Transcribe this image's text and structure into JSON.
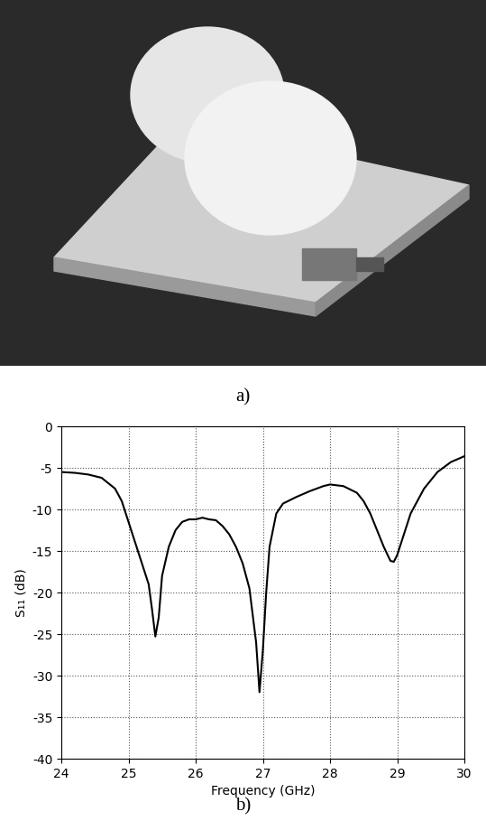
{
  "photo": {
    "caption": "a)"
  },
  "chart_data": {
    "type": "line",
    "caption": "b)",
    "x_label": "Frequency (GHz)",
    "y_label": "S₁₁ (dB)",
    "x": [
      24.0,
      24.2,
      24.4,
      24.6,
      24.8,
      24.9,
      25.0,
      25.1,
      25.2,
      25.3,
      25.35,
      25.4,
      25.45,
      25.5,
      25.6,
      25.7,
      25.8,
      25.9,
      26.0,
      26.1,
      26.2,
      26.3,
      26.4,
      26.5,
      26.6,
      26.7,
      26.8,
      26.9,
      26.95,
      27.0,
      27.05,
      27.1,
      27.2,
      27.3,
      27.5,
      27.7,
      27.9,
      28.0,
      28.2,
      28.4,
      28.5,
      28.6,
      28.7,
      28.8,
      28.9,
      28.95,
      29.0,
      29.1,
      29.2,
      29.4,
      29.6,
      29.8,
      30.0
    ],
    "values": [
      -5.5,
      -5.6,
      -5.8,
      -6.2,
      -7.5,
      -9,
      -11.5,
      -14,
      -16.5,
      -19,
      -22,
      -25.3,
      -23,
      -18,
      -14.5,
      -12.5,
      -11.5,
      -11.2,
      -11.2,
      -11,
      -11.2,
      -11.3,
      -12,
      -13,
      -14.5,
      -16.5,
      -19.5,
      -26,
      -32,
      -27,
      -20,
      -14.5,
      -10.5,
      -9.3,
      -8.5,
      -7.8,
      -7.2,
      -7,
      -7.2,
      -8,
      -9,
      -10.5,
      -12.5,
      -14.5,
      -16.2,
      -16.3,
      -15.5,
      -13,
      -10.5,
      -7.5,
      -5.5,
      -4.3,
      -3.6
    ],
    "color": "#000000",
    "xlim": [
      24,
      30
    ],
    "xticks": [
      24,
      25,
      26,
      27,
      28,
      29,
      30
    ],
    "ylim": [
      -40,
      0
    ],
    "yticks": [
      -40,
      -35,
      -30,
      -25,
      -20,
      -15,
      -10,
      -5,
      0
    ],
    "grid": true
  }
}
